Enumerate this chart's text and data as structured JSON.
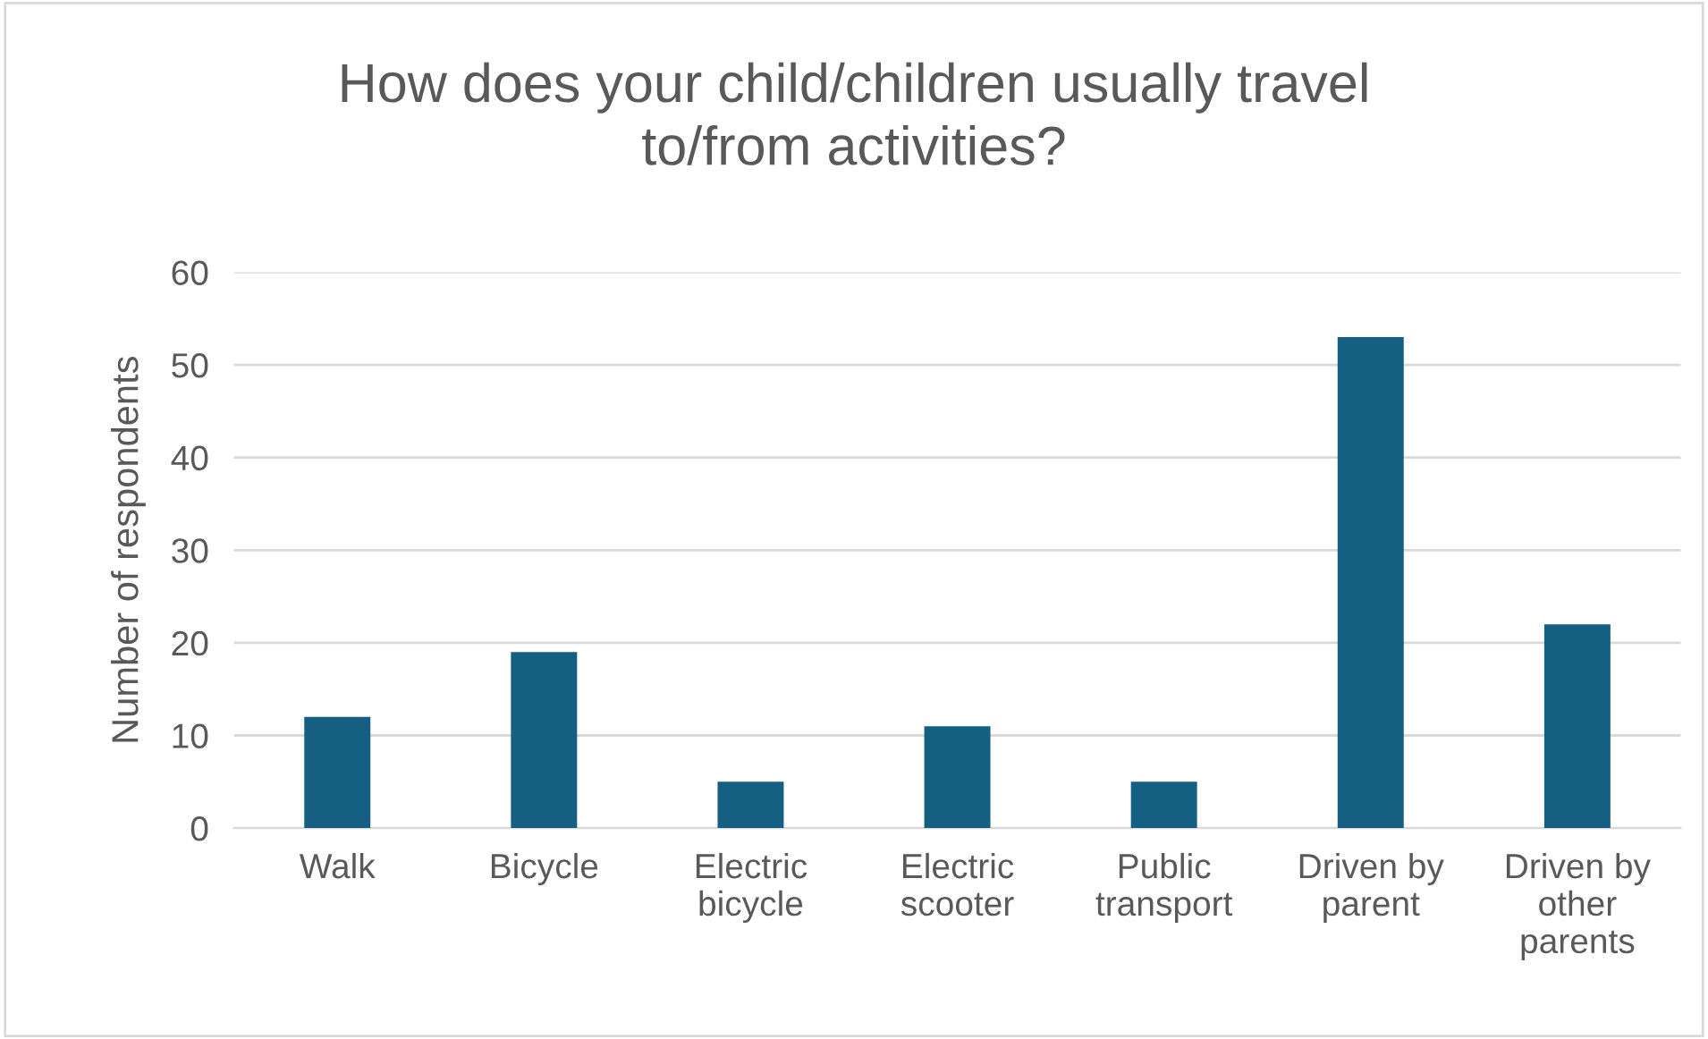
{
  "chart_data": {
    "type": "bar",
    "title": "How does your child/children usually travel to/from activities?",
    "ylabel": "Number of respondents",
    "categories": [
      "Walk",
      "Bicycle",
      "Electric bicycle",
      "Electric scooter",
      "Public transport",
      "Driven by parent",
      "Driven by other parents"
    ],
    "values": [
      12,
      19,
      5,
      11,
      5,
      53,
      22
    ],
    "color": "#156082",
    "ylim": [
      0,
      60
    ],
    "yticks": [
      0,
      10,
      20,
      30,
      40,
      50,
      60
    ],
    "grid": "y"
  }
}
